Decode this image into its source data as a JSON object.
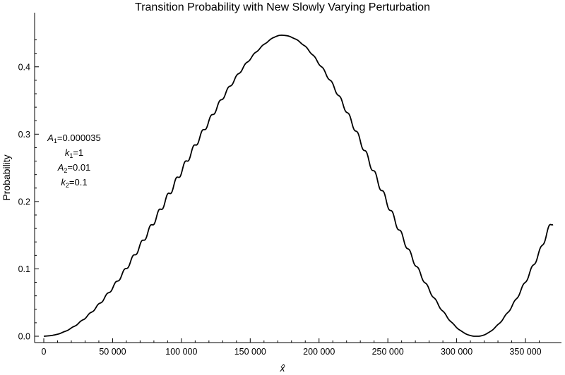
{
  "chart_data": {
    "type": "line",
    "title": "Transition Probability with New Slowly Varying Perturbation",
    "xlabel": "x̂",
    "ylabel": "Probability",
    "xlim": [
      0,
      370000
    ],
    "ylim": [
      0,
      0.45
    ],
    "x_ticks": [
      0,
      50000,
      100000,
      150000,
      200000,
      250000,
      300000,
      350000
    ],
    "x_tick_labels": [
      "0",
      "50 000",
      "100 000",
      "150 000",
      "200 000",
      "250 000",
      "300 000",
      "350 000"
    ],
    "y_ticks": [
      0,
      0.1,
      0.2,
      0.3,
      0.4
    ],
    "y_tick_labels": [
      "0.0",
      "0.1",
      "0.2",
      "0.3",
      "0.4"
    ],
    "grid": false,
    "series": [
      {
        "x": [
          0,
          10000,
          20000,
          30000,
          40000,
          50000,
          60000,
          70000,
          80000,
          90000,
          100000,
          110000,
          120000,
          130000,
          140000,
          150000,
          160000,
          170000,
          180000,
          190000,
          200000,
          210000,
          220000,
          230000,
          240000,
          250000,
          260000,
          270000,
          280000,
          290000,
          300000,
          310000,
          320000,
          330000,
          340000,
          350000,
          360000,
          370000
        ],
        "y": [
          0.0,
          0.003,
          0.012,
          0.027,
          0.047,
          0.072,
          0.101,
          0.134,
          0.17,
          0.207,
          0.245,
          0.283,
          0.319,
          0.354,
          0.385,
          0.412,
          0.433,
          0.446,
          0.444,
          0.43,
          0.405,
          0.373,
          0.334,
          0.29,
          0.243,
          0.196,
          0.15,
          0.107,
          0.069,
          0.037,
          0.013,
          0.001,
          0.002,
          0.017,
          0.044,
          0.081,
          0.124,
          0.17
        ]
      }
    ],
    "ripple_amplitude": 0.0045,
    "ripple_wavelength": 6300
  },
  "annotation": {
    "lines": [
      {
        "symbol": "A",
        "sub": "1",
        "value": "=0.000035"
      },
      {
        "symbol": "k",
        "sub": "1",
        "value": "=1"
      },
      {
        "symbol": "A",
        "sub": "2",
        "value": "=0.01"
      },
      {
        "symbol": "k",
        "sub": "2",
        "value": "=0.1"
      }
    ]
  }
}
